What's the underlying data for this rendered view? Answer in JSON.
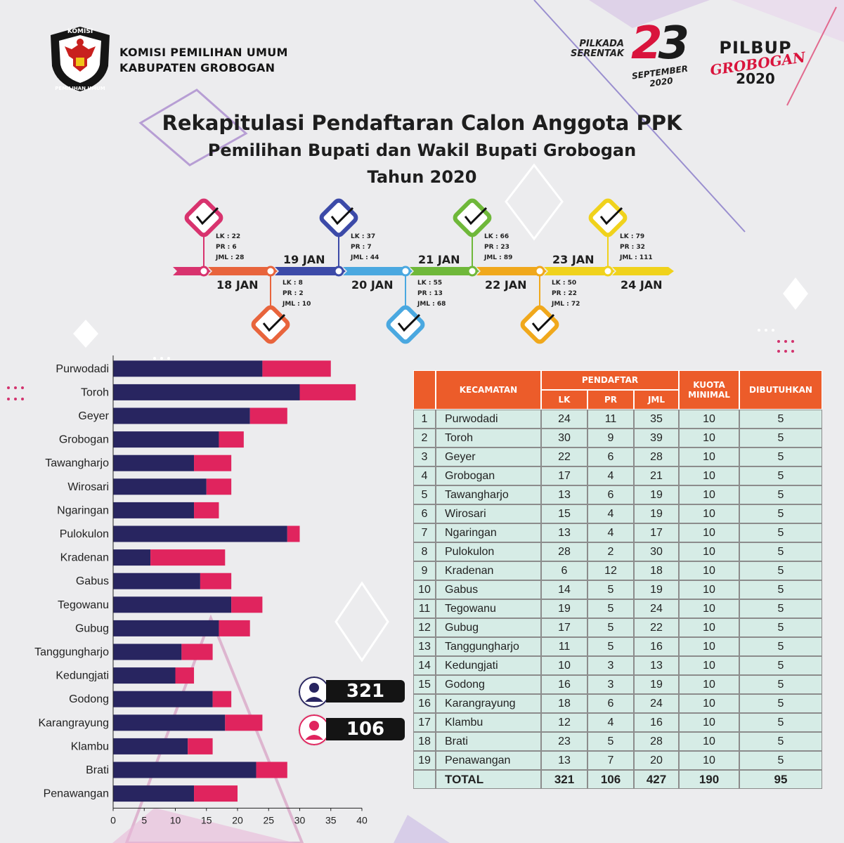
{
  "header": {
    "org_line1": "KOMISI PEMILIHAN UMUM",
    "org_line2": "KABUPATEN GROBOGAN",
    "emblem_text_top": "KOMISI",
    "emblem_text_bottom": "PEMILIHAN UMUM",
    "pilkada_line1": "PILKADA",
    "pilkada_line2": "SERENTAK",
    "pilkada_day_a": "2",
    "pilkada_day_b": "3",
    "pilkada_month": "SEPTEMBER",
    "pilkada_year": "2020",
    "pilbup_line1": "PILBUP",
    "pilbup_line2": "GROBOGAN",
    "pilbup_line3": "2020"
  },
  "title": {
    "line1": "Rekapitulasi Pendaftaran Calon Anggota PPK",
    "line2": "Pemilihan Bupati dan Wakil Bupati Grobogan",
    "line3": "Tahun 2020"
  },
  "timeline": [
    {
      "date": "18 JAN",
      "lk": "LK : 22",
      "pr": "PR : 6",
      "jml": "JML : 28",
      "color": "#d8336e"
    },
    {
      "date": "19 JAN",
      "lk": "LK : 8",
      "pr": "PR : 2",
      "jml": "JML : 10",
      "color": "#e8643c"
    },
    {
      "date": "20 JAN",
      "lk": "LK : 37",
      "pr": "PR : 7",
      "jml": "JML : 44",
      "color": "#3c4aa8"
    },
    {
      "date": "21 JAN",
      "lk": "LK : 55",
      "pr": "PR : 13",
      "jml": "JML : 68",
      "color": "#4aa8e0"
    },
    {
      "date": "22 JAN",
      "lk": "LK : 66",
      "pr": "PR : 23",
      "jml": "JML : 89",
      "color": "#6fb83a"
    },
    {
      "date": "23 JAN",
      "lk": "LK : 50",
      "pr": "PR : 22",
      "jml": "JML : 72",
      "color": "#f0a81c"
    },
    {
      "date": "24 JAN",
      "lk": "LK : 79",
      "pr": "PR : 32",
      "jml": "JML : 111",
      "color": "#f0d21c"
    }
  ],
  "summary": {
    "male_total": "321",
    "female_total": "106"
  },
  "chart_data": {
    "type": "bar",
    "orientation": "horizontal",
    "stacked": true,
    "categories": [
      "Purwodadi",
      "Toroh",
      "Geyer",
      "Grobogan",
      "Tawangharjo",
      "Wirosari",
      "Ngaringan",
      "Pulokulon",
      "Kradenan",
      "Gabus",
      "Tegowanu",
      "Gubug",
      "Tanggungharjo",
      "Kedungjati",
      "Godong",
      "Karangrayung",
      "Klambu",
      "Brati",
      "Penawangan"
    ],
    "series": [
      {
        "name": "LK",
        "color": "#282560",
        "values": [
          24,
          30,
          22,
          17,
          13,
          15,
          13,
          28,
          6,
          14,
          19,
          17,
          11,
          10,
          16,
          18,
          12,
          23,
          13
        ]
      },
      {
        "name": "PR",
        "color": "#e0245e",
        "values": [
          11,
          9,
          6,
          4,
          6,
          4,
          4,
          2,
          12,
          5,
          5,
          5,
          5,
          3,
          3,
          6,
          4,
          5,
          7
        ]
      }
    ],
    "xlim": [
      0,
      40
    ],
    "xticks": [
      "0",
      "5",
      "10",
      "15",
      "20",
      "25",
      "30",
      "35",
      "40"
    ],
    "title": "",
    "xlabel": "",
    "ylabel": ""
  },
  "table": {
    "headers": {
      "kecamatan": "KECAMATAN",
      "pendaftar": "PENDAFTAR",
      "lk": "LK",
      "pr": "PR",
      "jml": "JML",
      "kuota": "KUOTA MINIMAL",
      "dibutuhkan": "DIBUTUHKAN"
    },
    "rows": [
      [
        "1",
        "Purwodadi",
        "24",
        "11",
        "35",
        "10",
        "5"
      ],
      [
        "2",
        "Toroh",
        "30",
        "9",
        "39",
        "10",
        "5"
      ],
      [
        "3",
        "Geyer",
        "22",
        "6",
        "28",
        "10",
        "5"
      ],
      [
        "4",
        "Grobogan",
        "17",
        "4",
        "21",
        "10",
        "5"
      ],
      [
        "5",
        "Tawangharjo",
        "13",
        "6",
        "19",
        "10",
        "5"
      ],
      [
        "6",
        "Wirosari",
        "15",
        "4",
        "19",
        "10",
        "5"
      ],
      [
        "7",
        "Ngaringan",
        "13",
        "4",
        "17",
        "10",
        "5"
      ],
      [
        "8",
        "Pulokulon",
        "28",
        "2",
        "30",
        "10",
        "5"
      ],
      [
        "9",
        "Kradenan",
        "6",
        "12",
        "18",
        "10",
        "5"
      ],
      [
        "10",
        "Gabus",
        "14",
        "5",
        "19",
        "10",
        "5"
      ],
      [
        "11",
        "Tegowanu",
        "19",
        "5",
        "24",
        "10",
        "5"
      ],
      [
        "12",
        "Gubug",
        "17",
        "5",
        "22",
        "10",
        "5"
      ],
      [
        "13",
        "Tanggungharjo",
        "11",
        "5",
        "16",
        "10",
        "5"
      ],
      [
        "14",
        "Kedungjati",
        "10",
        "3",
        "13",
        "10",
        "5"
      ],
      [
        "15",
        "Godong",
        "16",
        "3",
        "19",
        "10",
        "5"
      ],
      [
        "16",
        "Karangrayung",
        "18",
        "6",
        "24",
        "10",
        "5"
      ],
      [
        "17",
        "Klambu",
        "12",
        "4",
        "16",
        "10",
        "5"
      ],
      [
        "18",
        "Brati",
        "23",
        "5",
        "28",
        "10",
        "5"
      ],
      [
        "19",
        "Penawangan",
        "13",
        "7",
        "20",
        "10",
        "5"
      ]
    ],
    "total": [
      "",
      "TOTAL",
      "321",
      "106",
      "427",
      "190",
      "95"
    ]
  }
}
